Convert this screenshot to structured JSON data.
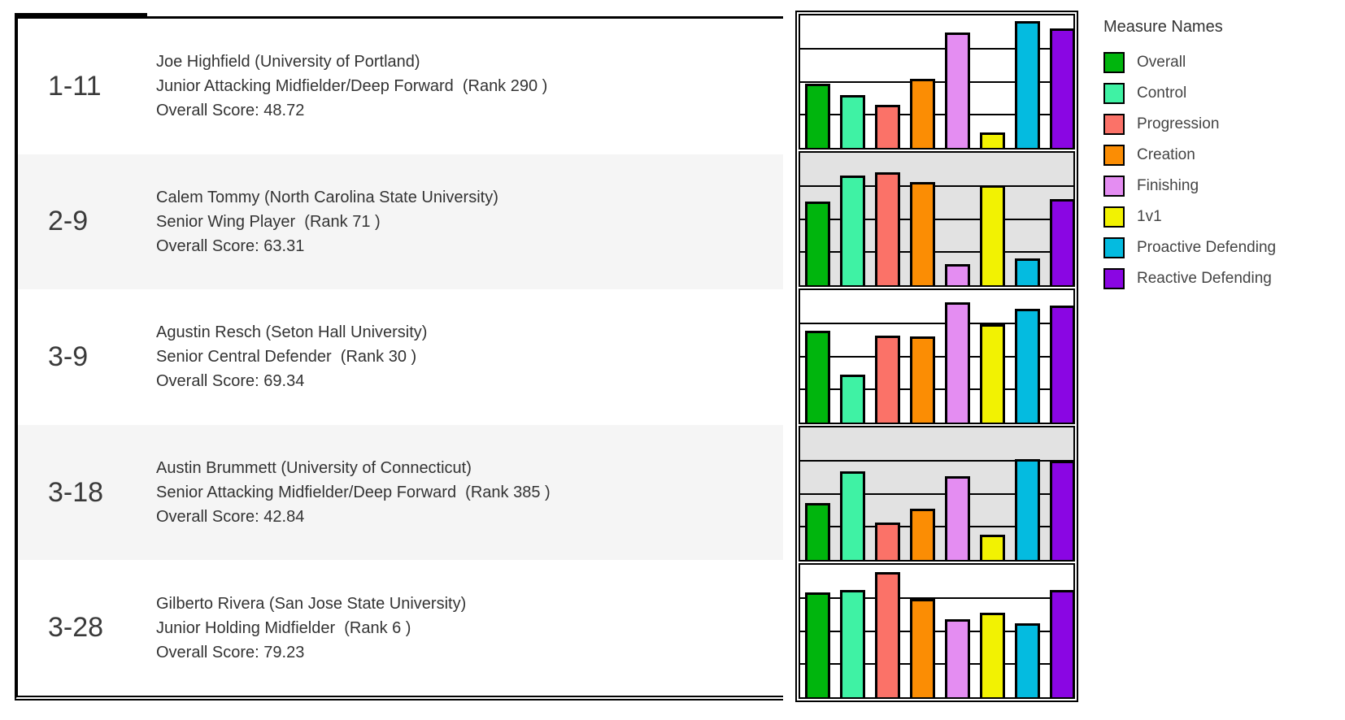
{
  "colors": {
    "row_stripe": "#F5F5F5",
    "row_plain": "#FFFFFF",
    "chart_stripe": "#E2E2E2",
    "chart_plain": "#FFFFFF",
    "border": "#000000",
    "text": "#333333"
  },
  "table": {
    "rows": [
      {
        "rank_id": "1-11",
        "name": "Joe Highfield (University of Portland)",
        "position": "Junior Attacking Midfielder/Deep Forward  (Rank 290 )",
        "score_label": "Overall Score: 48.72"
      },
      {
        "rank_id": "2-9",
        "name": "Calem Tommy (North Carolina State University)",
        "position": "Senior Wing Player  (Rank 71 )",
        "score_label": "Overall Score: 63.31"
      },
      {
        "rank_id": "3-9",
        "name": "Agustin Resch (Seton Hall University)",
        "position": "Senior Central Defender  (Rank 30 )",
        "score_label": "Overall Score: 69.34"
      },
      {
        "rank_id": "3-18",
        "name": "Austin Brummett (University of Connecticut)",
        "position": "Senior Attacking Midfielder/Deep Forward  (Rank 385 )",
        "score_label": "Overall Score: 42.84"
      },
      {
        "rank_id": "3-28",
        "name": "Gilberto Rivera (San Jose State University)",
        "position": "Junior Holding Midfielder  (Rank 6 )",
        "score_label": "Overall Score: 79.23"
      }
    ]
  },
  "legend": {
    "title": "Measure Names",
    "items": [
      {
        "label": "Overall",
        "color": "#00B50D"
      },
      {
        "label": "Control",
        "color": "#3FF2A4"
      },
      {
        "label": "Progression",
        "color": "#FB7268"
      },
      {
        "label": "Creation",
        "color": "#FB8D04"
      },
      {
        "label": "Finishing",
        "color": "#E48DF2"
      },
      {
        "label": "1v1",
        "color": "#F2F202"
      },
      {
        "label": "Proactive Defending",
        "color": "#04BBE0"
      },
      {
        "label": "Reactive Defending",
        "color": "#8A06E3"
      }
    ]
  },
  "chart_data": {
    "type": "bar",
    "measures": [
      "Overall",
      "Control",
      "Progression",
      "Creation",
      "Finishing",
      "1v1",
      "Proactive Defending",
      "Reactive Defending"
    ],
    "ylim": [
      0,
      100
    ],
    "gridlines": [
      25,
      50,
      75
    ],
    "grid": true,
    "legend_position": "right",
    "charts": [
      {
        "player": "1-11 Joe Highfield",
        "values": [
          48.7,
          40.0,
          32.5,
          52.0,
          87.0,
          11.5,
          96.0,
          90.0
        ]
      },
      {
        "player": "2-9 Calem Tommy",
        "values": [
          63.3,
          83.0,
          85.0,
          78.0,
          16.0,
          75.5,
          20.0,
          65.0
        ]
      },
      {
        "player": "3-9 Agustin Resch",
        "values": [
          69.3,
          36.5,
          65.5,
          65.0,
          91.0,
          74.5,
          86.0,
          88.5
        ]
      },
      {
        "player": "3-18 Austin Brummett",
        "values": [
          42.8,
          67.0,
          28.5,
          38.5,
          63.0,
          19.0,
          76.0,
          75.0
        ]
      },
      {
        "player": "3-28 Gilberto Rivera",
        "values": [
          79.2,
          81.0,
          94.5,
          74.0,
          59.0,
          64.0,
          56.0,
          81.0
        ]
      }
    ]
  }
}
